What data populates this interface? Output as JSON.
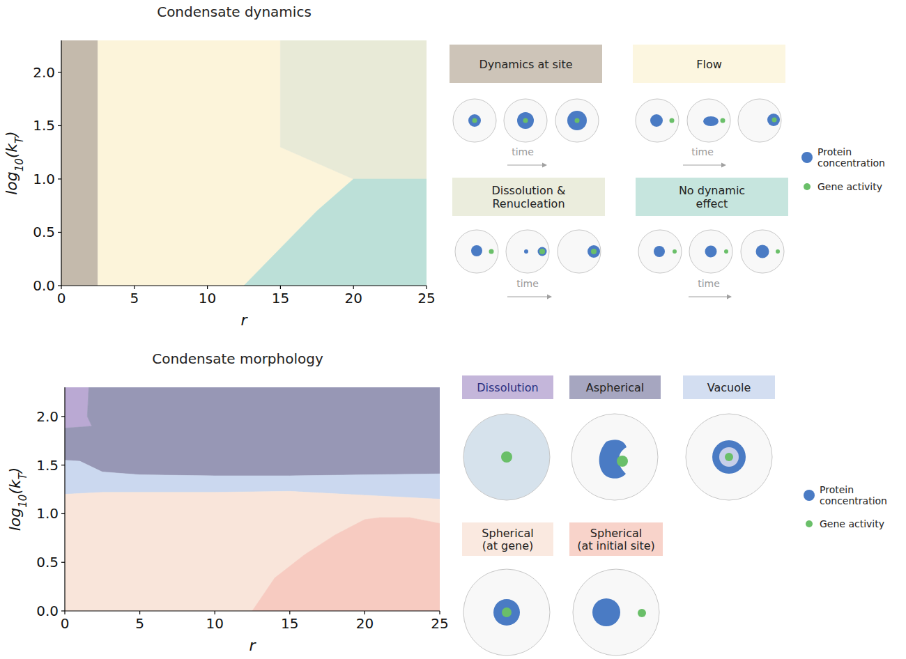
{
  "chart_data": [
    {
      "type": "region_map",
      "title": "Condensate dynamics",
      "x_label": "r",
      "y_label": "log10(kT)",
      "xlim": [
        0,
        25
      ],
      "ylim": [
        0,
        2.3
      ],
      "xticks": [
        0,
        5,
        10,
        15,
        20,
        25
      ],
      "yticks": [
        {
          "value": 0,
          "label": "0.0"
        },
        0.5,
        {
          "value": 1,
          "label": "1.0"
        },
        1.5,
        {
          "value": 2,
          "label": "2.0"
        }
      ],
      "grid": false,
      "regions": [
        {
          "name": "Dynamics at site",
          "color": "#c4baac",
          "x": [
            0,
            2.5,
            2.5,
            0
          ],
          "y": [
            0,
            0,
            2.3,
            2.3
          ]
        },
        {
          "name": "Flow",
          "color": "#fcf4da",
          "x": [
            2.5,
            12.5,
            17.5,
            20,
            15,
            15,
            2.5
          ],
          "y": [
            0,
            0,
            0.7,
            1.0,
            1.3,
            2.3,
            2.3
          ]
        },
        {
          "name": "Dissolution & Renucleation",
          "color": "#e8ead7",
          "x": [
            15,
            20,
            25,
            25,
            15
          ],
          "y": [
            1.3,
            1.0,
            1.0,
            2.3,
            2.3
          ]
        },
        {
          "name": "No dynamic effect",
          "color": "#bce0d8",
          "x": [
            12.5,
            25,
            25,
            20,
            17.5
          ],
          "y": [
            0,
            0,
            1.0,
            1.0,
            0.7
          ]
        }
      ],
      "time_label": "time",
      "legend_items": [
        {
          "name": "Protein concentration",
          "color": "#4a7bc4"
        },
        {
          "name": "Gene activity",
          "color": "#6abf69"
        }
      ]
    },
    {
      "type": "region_map",
      "title": "Condensate morphology",
      "x_label": "r",
      "y_label": "log10(kT)",
      "xlim": [
        0,
        25
      ],
      "ylim": [
        0,
        2.3
      ],
      "xticks": [
        0,
        5,
        10,
        15,
        20,
        25
      ],
      "yticks": [
        {
          "value": 0,
          "label": "0.0"
        },
        0.5,
        {
          "value": 1,
          "label": "1.0"
        },
        1.5,
        {
          "value": 2,
          "label": "2.0"
        }
      ],
      "grid": false,
      "regions": [
        {
          "name": "Dissolution",
          "color": "#baa9d3",
          "x": [
            0,
            1.6,
            1.5,
            1.8,
            0
          ],
          "y": [
            2.3,
            2.3,
            2.0,
            1.9,
            1.88
          ]
        },
        {
          "name": "Aspherical",
          "color": "#9797b5",
          "x": [
            1.6,
            25,
            25,
            20,
            15,
            10,
            5,
            2.5,
            1,
            0,
            0,
            1.8,
            1.5
          ],
          "y": [
            2.3,
            2.3,
            1.41,
            1.4,
            1.39,
            1.39,
            1.4,
            1.43,
            1.54,
            1.55,
            1.88,
            1.9,
            2.0
          ]
        },
        {
          "name": "Vacuole",
          "color": "#cbd8ef",
          "x": [
            0,
            1,
            2.5,
            5,
            10,
            15,
            20,
            25,
            25,
            20,
            15,
            10,
            2.5,
            0
          ],
          "y": [
            1.55,
            1.54,
            1.43,
            1.4,
            1.39,
            1.39,
            1.4,
            1.41,
            1.15,
            1.19,
            1.23,
            1.22,
            1.22,
            1.2
          ]
        },
        {
          "name": "Spherical (at gene)",
          "color": "#f9e5da",
          "x": [
            0,
            2.5,
            10,
            15,
            20,
            25,
            25,
            23,
            21,
            20,
            18,
            16,
            14,
            12.5,
            0
          ],
          "y": [
            1.2,
            1.22,
            1.22,
            1.23,
            1.19,
            1.15,
            0.9,
            0.96,
            0.96,
            0.94,
            0.78,
            0.58,
            0.34,
            0,
            0
          ]
        },
        {
          "name": "Spherical (at initial site)",
          "color": "#f7cbc1",
          "x": [
            12.5,
            14,
            16,
            18,
            20,
            21,
            23,
            25,
            25
          ],
          "y": [
            0,
            0.34,
            0.58,
            0.78,
            0.94,
            0.96,
            0.96,
            0.9,
            0
          ]
        }
      ],
      "legend_items": [
        {
          "name": "Protein concentration",
          "color": "#4a7bc4"
        },
        {
          "name": "Gene activity",
          "color": "#6abf69"
        }
      ]
    }
  ]
}
